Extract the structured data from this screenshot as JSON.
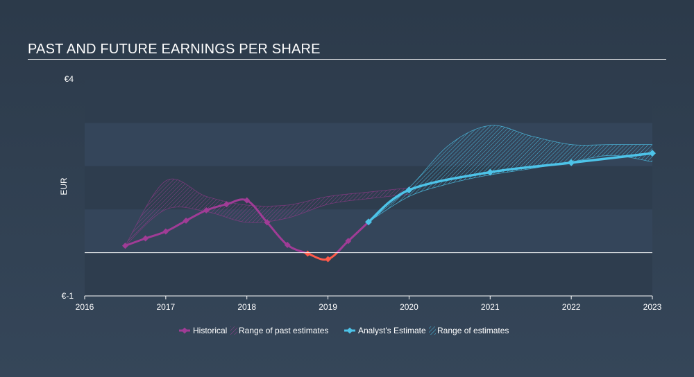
{
  "chart_data": {
    "type": "line",
    "title": "PAST AND FUTURE EARNINGS PER SHARE",
    "ylabel": "EUR",
    "ylim": [
      -1,
      4
    ],
    "y_ticks": [
      "€4",
      "€-1"
    ],
    "xlim": [
      2016,
      2023
    ],
    "x_ticks": [
      "2016",
      "2017",
      "2018",
      "2019",
      "2020",
      "2021",
      "2022",
      "2023"
    ],
    "zero_line": 0,
    "series": [
      {
        "name": "Historical",
        "color": "#a03c96",
        "negative_color": "#ff5a4a",
        "x": [
          2016.5,
          2016.75,
          2017.0,
          2017.25,
          2017.5,
          2017.75,
          2018.0,
          2018.25,
          2018.5,
          2018.75,
          2019.0,
          2019.25,
          2019.5
        ],
        "y": [
          0.16,
          0.33,
          0.49,
          0.74,
          0.98,
          1.12,
          1.21,
          0.7,
          0.18,
          -0.02,
          -0.15,
          0.27,
          0.71
        ]
      },
      {
        "name": "Analyst's Estimate",
        "color": "#4dc3e8",
        "x": [
          2019.5,
          2020.0,
          2021.0,
          2022.0,
          2023.0
        ],
        "y": [
          0.71,
          1.45,
          1.86,
          2.08,
          2.3
        ]
      }
    ],
    "ranges": [
      {
        "name": "Range of past estimates",
        "color": "#8a3a84",
        "x": [
          2016.5,
          2017.0,
          2017.5,
          2018.0,
          2018.5,
          2019.0,
          2019.5,
          2020.0
        ],
        "upper": [
          0.16,
          1.66,
          1.3,
          1.1,
          1.1,
          1.3,
          1.4,
          1.5
        ],
        "lower": [
          0.16,
          1.0,
          0.95,
          0.7,
          0.8,
          1.12,
          1.25,
          1.35
        ]
      },
      {
        "name": "Range of estimates",
        "color": "#4dc3e8",
        "x": [
          2019.5,
          2020.0,
          2020.5,
          2021.0,
          2021.5,
          2022.0,
          2022.5,
          2023.0
        ],
        "upper": [
          0.71,
          1.5,
          2.5,
          2.94,
          2.7,
          2.5,
          2.5,
          2.5
        ],
        "lower": [
          0.71,
          1.3,
          1.6,
          1.8,
          1.94,
          2.1,
          2.25,
          2.1
        ]
      }
    ],
    "legend": {
      "placement": "bottom-center",
      "items": [
        "Historical",
        "Range of past estimates",
        "Analyst's Estimate",
        "Range of estimates"
      ]
    }
  }
}
